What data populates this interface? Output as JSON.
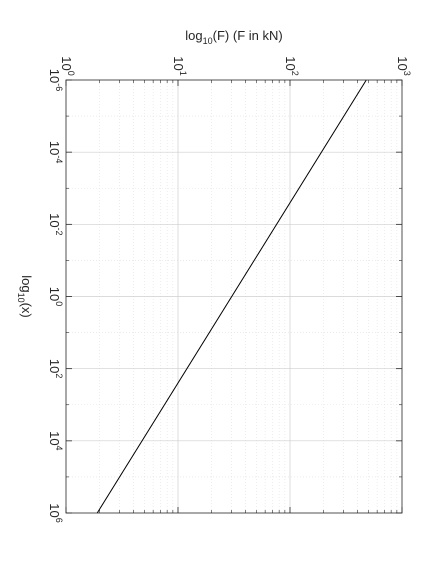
{
  "chart_data": {
    "type": "line",
    "orientation": "rotated-90",
    "title": "",
    "xlabel": {
      "base": "log",
      "sub": "10",
      "rest": "(x)"
    },
    "flabel": {
      "base": "log",
      "sub": "10",
      "rest": "(F) (F in kN)"
    },
    "x_scale": "log",
    "f_scale": "log",
    "x_range": [
      1e-06,
      1000000.0
    ],
    "f_range": [
      1,
      1000
    ],
    "x_ticks": [
      {
        "base": "10",
        "exp": "-6"
      },
      {
        "base": "10",
        "exp": "-4"
      },
      {
        "base": "10",
        "exp": "-2"
      },
      {
        "base": "10",
        "exp": "0"
      },
      {
        "base": "10",
        "exp": "2"
      },
      {
        "base": "10",
        "exp": "4"
      },
      {
        "base": "10",
        "exp": "6"
      }
    ],
    "f_ticks": [
      {
        "base": "10",
        "exp": "0"
      },
      {
        "base": "10",
        "exp": "1"
      },
      {
        "base": "10",
        "exp": "2"
      },
      {
        "base": "10",
        "exp": "3"
      }
    ],
    "grid": true,
    "minor_grid": true,
    "series": [
      {
        "x": [
          1e-06,
          1000000.0
        ],
        "F": [
          480,
          1.9
        ],
        "color": "#000000"
      }
    ]
  }
}
